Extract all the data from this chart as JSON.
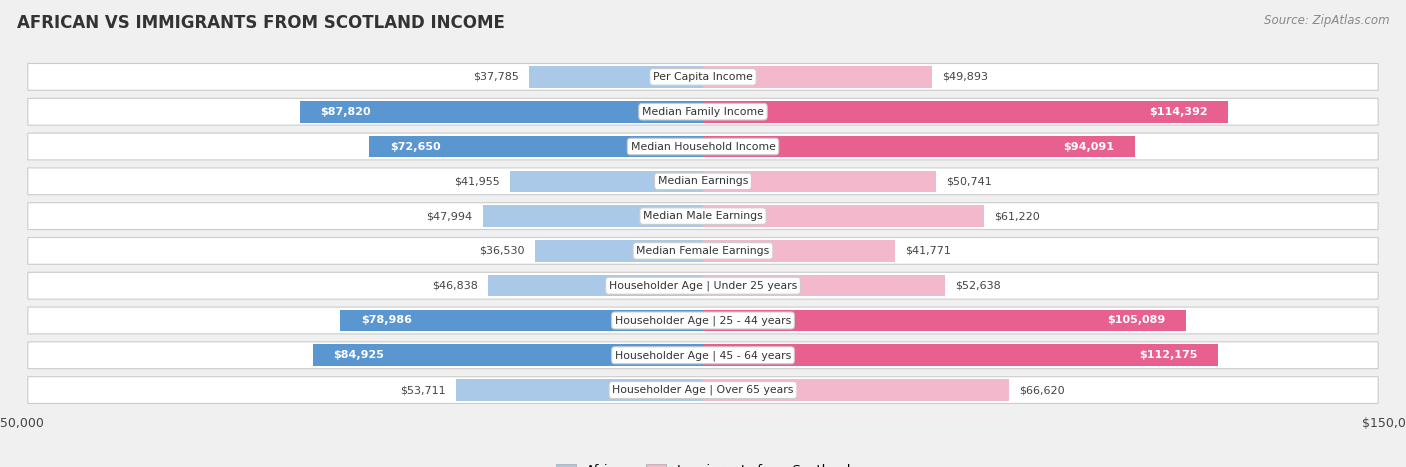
{
  "title": "AFRICAN VS IMMIGRANTS FROM SCOTLAND INCOME",
  "source": "Source: ZipAtlas.com",
  "categories": [
    "Per Capita Income",
    "Median Family Income",
    "Median Household Income",
    "Median Earnings",
    "Median Male Earnings",
    "Median Female Earnings",
    "Householder Age | Under 25 years",
    "Householder Age | 25 - 44 years",
    "Householder Age | 45 - 64 years",
    "Householder Age | Over 65 years"
  ],
  "african_values": [
    37785,
    87820,
    72650,
    41955,
    47994,
    36530,
    46838,
    78986,
    84925,
    53711
  ],
  "scotland_values": [
    49893,
    114392,
    94091,
    50741,
    61220,
    41771,
    52638,
    105089,
    112175,
    66620
  ],
  "african_light": "#aac9e8",
  "african_dark": "#5a96d0",
  "scotland_light": "#f4b8cc",
  "scotland_dark": "#e86090",
  "axis_max": 150000,
  "dark_threshold": 70000,
  "background_color": "#f0f0f0",
  "row_bg_color": "#ffffff",
  "row_border_color": "#cccccc",
  "title_color": "#333333",
  "source_color": "#888888",
  "label_outside_color": "#444444",
  "label_inside_color": "#ffffff",
  "legend_african": "African",
  "legend_scotland": "Immigrants from Scotland",
  "bar_height": 0.62,
  "row_padding": 0.12
}
